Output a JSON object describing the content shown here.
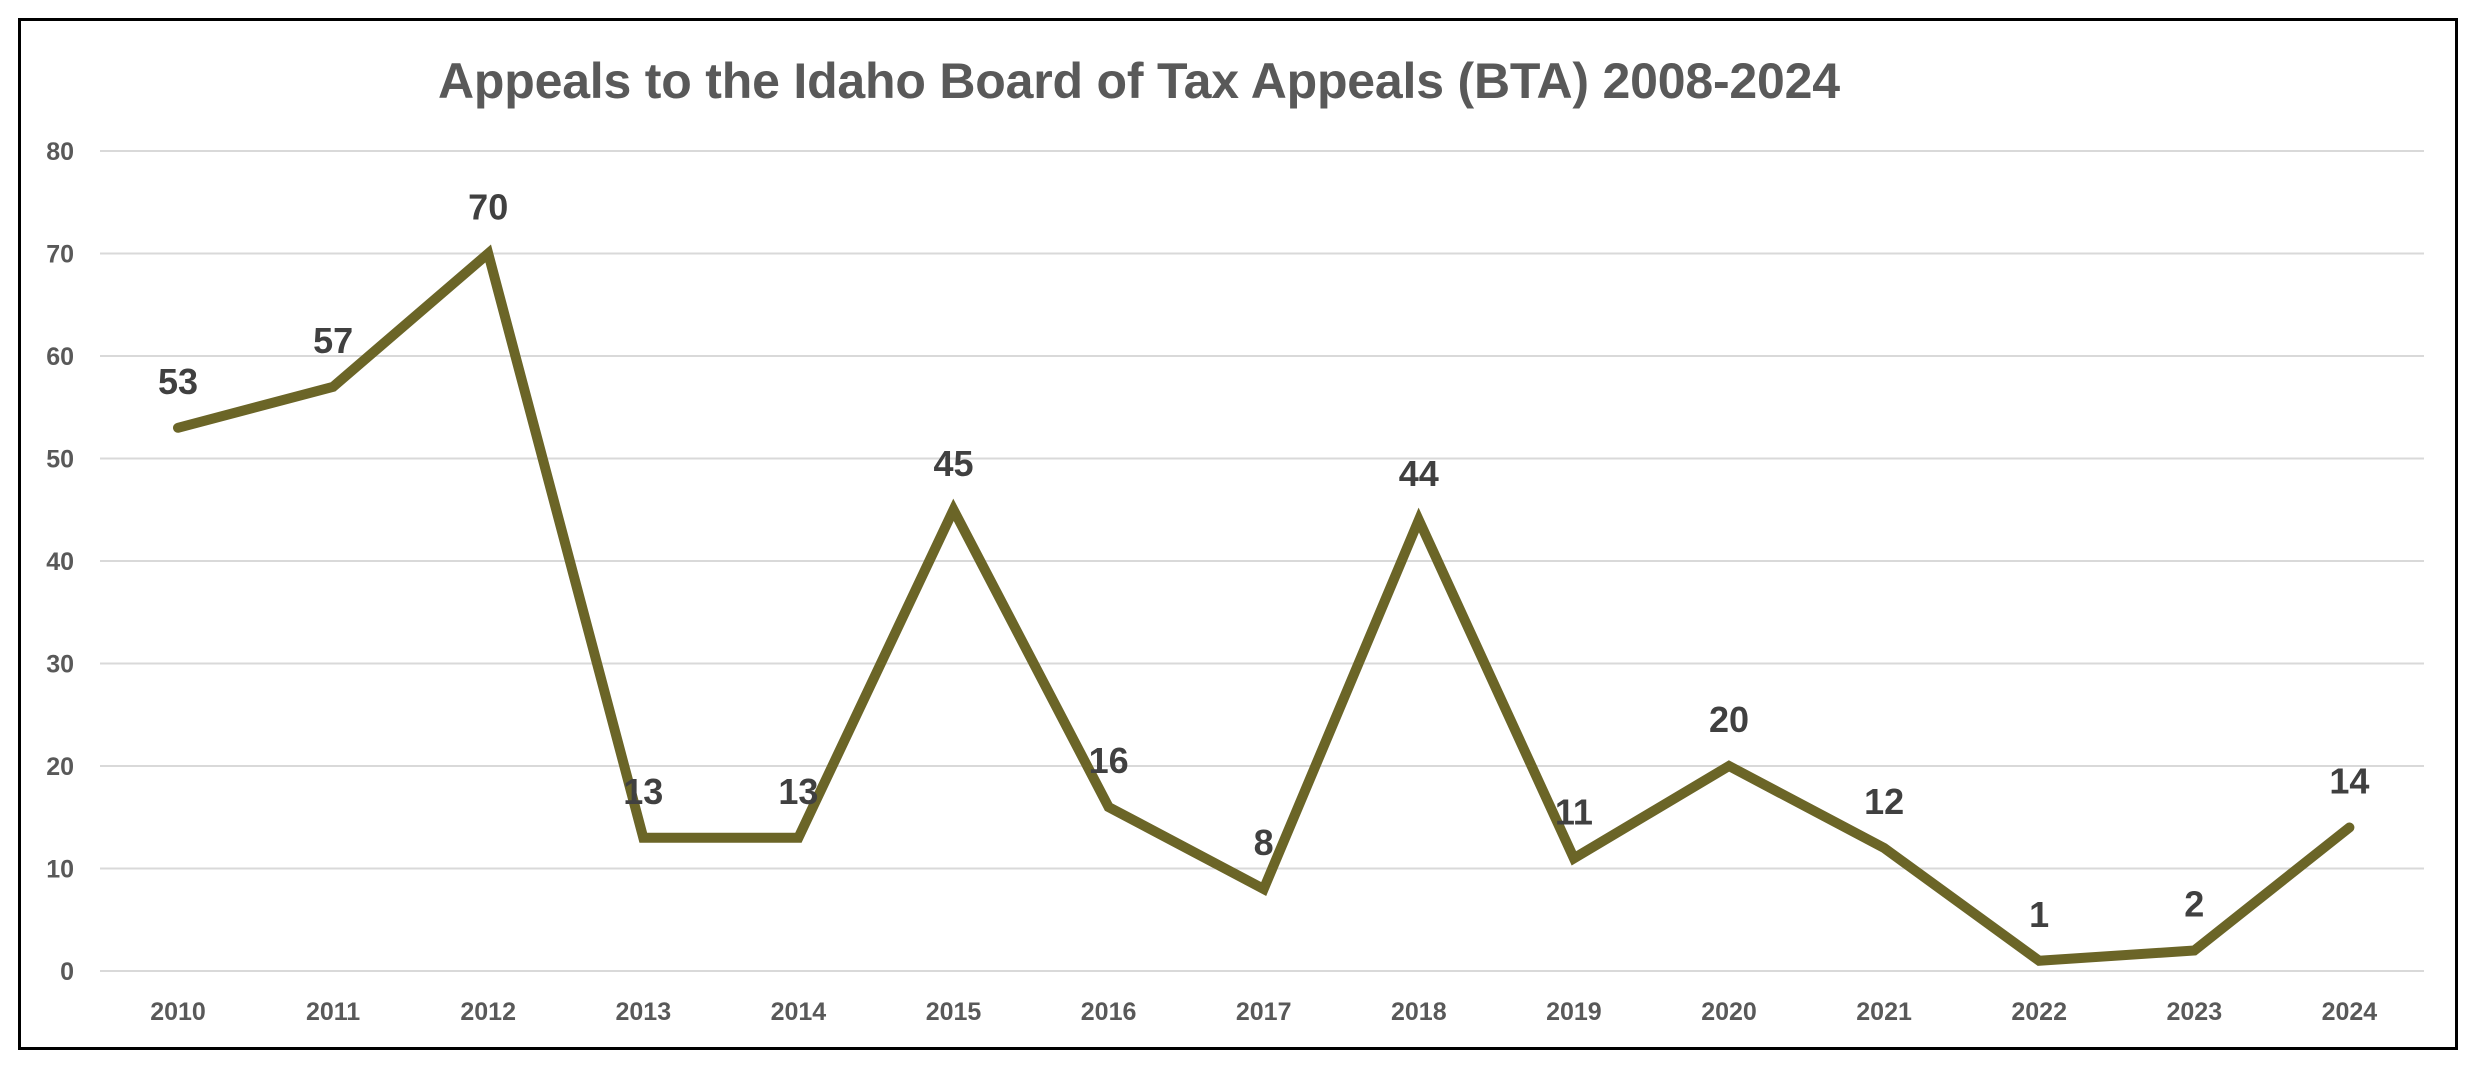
{
  "chart_data": {
    "type": "line",
    "title": "Appeals to the Idaho Board of Tax Appeals (BTA) 2008-2024",
    "categories": [
      "2010",
      "2011",
      "2012",
      "2013",
      "2014",
      "2015",
      "2016",
      "2017",
      "2018",
      "2019",
      "2020",
      "2021",
      "2022",
      "2023",
      "2024"
    ],
    "series": [
      {
        "values": [
          53,
          57,
          70,
          13,
          13,
          45,
          16,
          8,
          44,
          11,
          20,
          12,
          1,
          2,
          14
        ]
      }
    ],
    "y_ticks": [
      "0",
      "10",
      "20",
      "30",
      "40",
      "50",
      "60",
      "70",
      "80"
    ],
    "ylim": [
      0,
      80
    ],
    "grid": true,
    "data_labels": true,
    "legend": "none",
    "colors": {
      "line": "#6b6527",
      "grid": "#d9d9d9",
      "tick_text": "#595959",
      "label_text": "#404040",
      "title_text": "#595959"
    }
  }
}
